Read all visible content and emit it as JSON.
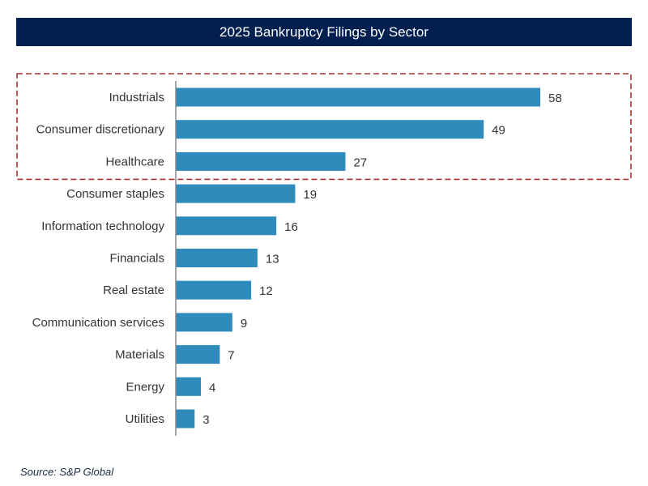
{
  "header": {
    "title": "2025 Bankruptcy Filings by Sector"
  },
  "footer": {
    "source": "Source: S&P Global"
  },
  "colors": {
    "title_bg": "#012050",
    "bar": "#2e8bbb",
    "highlight_border": "#a83232",
    "axis": "#888888"
  },
  "chart_data": {
    "type": "bar",
    "orientation": "horizontal",
    "title": "2025 Bankruptcy Filings by Sector",
    "xlabel": "",
    "ylabel": "",
    "xlim": [
      0,
      60
    ],
    "grid": false,
    "legend": "none",
    "categories": [
      "Industrials",
      "Consumer discretionary",
      "Healthcare",
      "Consumer staples",
      "Information technology",
      "Financials",
      "Real estate",
      "Communication services",
      "Materials",
      "Energy",
      "Utilities"
    ],
    "values": [
      58,
      49,
      27,
      19,
      16,
      13,
      12,
      9,
      7,
      4,
      3
    ],
    "highlighted_categories": [
      "Industrials",
      "Consumer discretionary",
      "Healthcare"
    ]
  }
}
